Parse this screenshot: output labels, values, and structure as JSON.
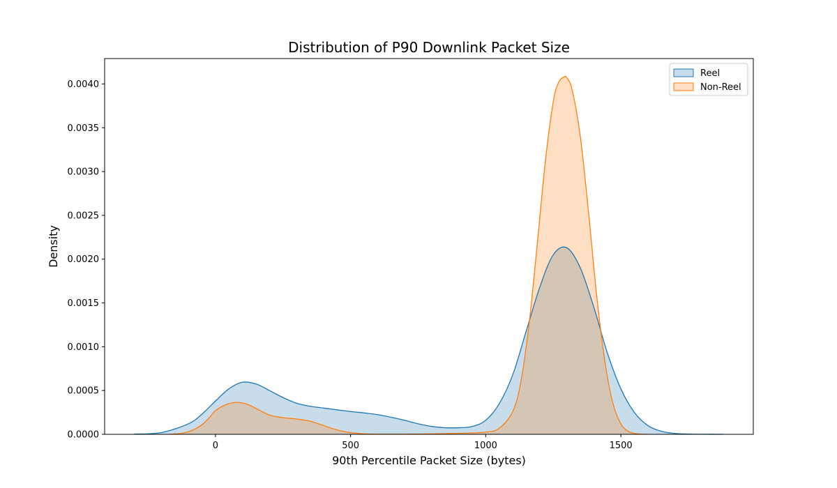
{
  "chart_data": {
    "type": "area",
    "title": "Distribution of P90 Downlink Packet Size",
    "xlabel": "90th Percentile Packet Size (bytes)",
    "ylabel": "Density",
    "xlim": [
      -410,
      1990
    ],
    "ylim": [
      0,
      0.00429
    ],
    "xticks": [
      0,
      500,
      1000,
      1500
    ],
    "xtick_labels": [
      "0",
      "500",
      "1000",
      "1500"
    ],
    "yticks": [
      0,
      0.0005,
      0.001,
      0.0015,
      0.002,
      0.0025,
      0.003,
      0.0035,
      0.004
    ],
    "ytick_labels": [
      "0.0000",
      "0.0005",
      "0.0010",
      "0.0015",
      "0.0020",
      "0.0025",
      "0.0030",
      "0.0035",
      "0.0040"
    ],
    "grid": false,
    "legend": "top-right",
    "series": [
      {
        "name": "Reel",
        "line_color": "#1f77b4",
        "fill_color": "#1f77b4",
        "x": [
          -300,
          -200,
          -100,
          -50,
          0,
          50,
          100,
          150,
          200,
          250,
          300,
          350,
          400,
          450,
          500,
          550,
          600,
          650,
          700,
          750,
          800,
          850,
          900,
          950,
          1000,
          1050,
          1100,
          1150,
          1200,
          1250,
          1300,
          1350,
          1400,
          1450,
          1500,
          1550,
          1600,
          1650,
          1700,
          1750,
          1800,
          1880
        ],
        "y": [
          2e-06,
          2e-05,
          0.00012,
          0.00023,
          0.00038,
          0.00052,
          0.000595,
          0.000575,
          0.0005,
          0.00042,
          0.000355,
          0.00032,
          0.0003,
          0.00028,
          0.00026,
          0.000245,
          0.000225,
          0.000195,
          0.00016,
          0.00012,
          9e-05,
          7.5e-05,
          7.5e-05,
          9e-05,
          0.00016,
          0.00035,
          0.00068,
          0.00118,
          0.00168,
          0.00205,
          0.00213,
          0.0019,
          0.00145,
          0.00093,
          0.00052,
          0.00025,
          0.0001,
          3.5e-05,
          1e-05,
          3e-06,
          1e-06,
          0
        ]
      },
      {
        "name": "Non-Reel",
        "line_color": "#ff7f0e",
        "fill_color": "#ff7f0e",
        "x": [
          -170,
          -130,
          -90,
          -50,
          -20,
          0,
          40,
          80,
          120,
          160,
          200,
          250,
          300,
          350,
          400,
          450,
          500,
          550,
          600,
          700,
          800,
          900,
          1000,
          1050,
          1100,
          1130,
          1160,
          1190,
          1220,
          1250,
          1270,
          1290,
          1300,
          1320,
          1350,
          1380,
          1410,
          1440,
          1470,
          1500,
          1530,
          1560,
          1600
        ],
        "y": [
          1e-06,
          1e-05,
          4e-05,
          0.00011,
          0.0002,
          0.00027,
          0.00034,
          0.000365,
          0.00034,
          0.00028,
          0.00022,
          0.00019,
          0.000175,
          0.00015,
          0.0001,
          5e-05,
          2e-05,
          6e-06,
          2e-06,
          2e-06,
          5e-06,
          1.2e-05,
          2.5e-05,
          7e-05,
          0.00026,
          0.0006,
          0.00125,
          0.00215,
          0.0031,
          0.0038,
          0.00402,
          0.00408,
          0.00407,
          0.00393,
          0.0034,
          0.00255,
          0.0016,
          0.00085,
          0.00036,
          0.00012,
          3e-05,
          6e-06,
          0
        ]
      }
    ]
  }
}
